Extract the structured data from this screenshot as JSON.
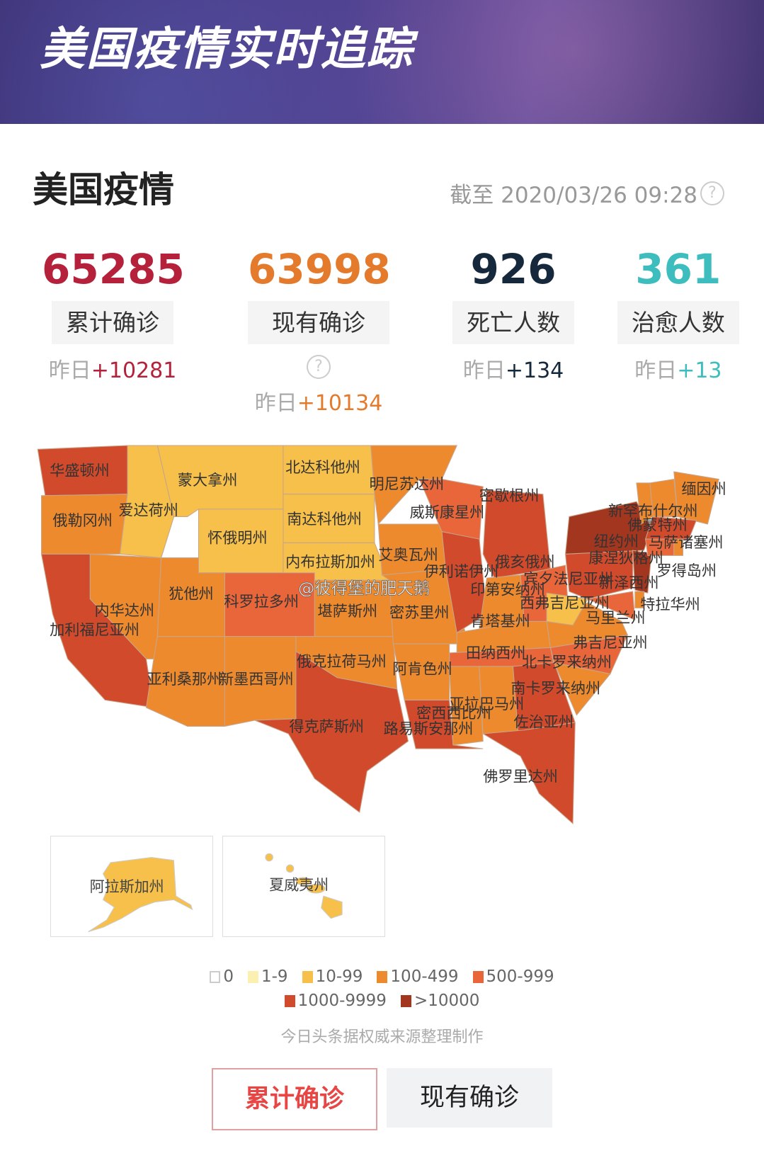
{
  "banner": {
    "title": "美国疫情实时追踪"
  },
  "header": {
    "title": "美国疫情",
    "updated": "截至 2020/03/26 09:28"
  },
  "stats": [
    {
      "value": "65285",
      "label": "累计确诊",
      "yesterday_prefix": "昨日",
      "yesterday": "+10281",
      "color": "#b5213a",
      "has_help": false
    },
    {
      "value": "63998",
      "label": "现有确诊",
      "yesterday_prefix": "昨日",
      "yesterday": "+10134",
      "color": "#e47a2c",
      "has_help": true
    },
    {
      "value": "926",
      "label": "死亡人数",
      "yesterday_prefix": "昨日",
      "yesterday": "+134",
      "color": "#16283c",
      "has_help": false
    },
    {
      "value": "361",
      "label": "治愈人数",
      "yesterday_prefix": "昨日",
      "yesterday": "+13",
      "color": "#3dbdbd",
      "has_help": false
    }
  ],
  "legend": [
    {
      "label": "0",
      "color": "#ffffff"
    },
    {
      "label": "1-9",
      "color": "#fbf0b0"
    },
    {
      "label": "10-99",
      "color": "#f6c04a"
    },
    {
      "label": "100-499",
      "color": "#ee8a2e"
    },
    {
      "label": "500-999",
      "color": "#e8663a"
    },
    {
      "label": "1000-9999",
      "color": "#d04a2b"
    },
    {
      "label": ">10000",
      "color": "#a2361f"
    }
  ],
  "states": [
    {
      "name": "华盛顿州",
      "bin": 5
    },
    {
      "name": "俄勒冈州",
      "bin": 3
    },
    {
      "name": "爱达荷州",
      "bin": 2
    },
    {
      "name": "蒙大拿州",
      "bin": 2
    },
    {
      "name": "北达科他州",
      "bin": 2
    },
    {
      "name": "南达科他州",
      "bin": 2
    },
    {
      "name": "怀俄明州",
      "bin": 2
    },
    {
      "name": "内布拉斯加州",
      "bin": 2
    },
    {
      "name": "内华达州",
      "bin": 3
    },
    {
      "name": "加利福尼亚州",
      "bin": 5
    },
    {
      "name": "犹他州",
      "bin": 3
    },
    {
      "name": "科罗拉多州",
      "bin": 4
    },
    {
      "name": "亚利桑那州",
      "bin": 3
    },
    {
      "name": "新墨西哥州",
      "bin": 3
    },
    {
      "name": "堪萨斯州",
      "bin": 3
    },
    {
      "name": "俄克拉荷马州",
      "bin": 3
    },
    {
      "name": "得克萨斯州",
      "bin": 5
    },
    {
      "name": "明尼苏达州",
      "bin": 3
    },
    {
      "name": "艾奥瓦州",
      "bin": 3
    },
    {
      "name": "密苏里州",
      "bin": 3
    },
    {
      "name": "威斯康星州",
      "bin": 4
    },
    {
      "name": "伊利诺伊州",
      "bin": 5
    },
    {
      "name": "密歇根州",
      "bin": 5
    },
    {
      "name": "印第安纳州",
      "bin": 3
    },
    {
      "name": "俄亥俄州",
      "bin": 4
    },
    {
      "name": "肯塔基州",
      "bin": 3
    },
    {
      "name": "田纳西州",
      "bin": 4
    },
    {
      "name": "阿肯色州",
      "bin": 3
    },
    {
      "name": "路易斯安那州",
      "bin": 5
    },
    {
      "name": "密西西比州",
      "bin": 3
    },
    {
      "name": "亚拉巴马州",
      "bin": 3
    },
    {
      "name": "佐治亚州",
      "bin": 5
    },
    {
      "name": "佛罗里达州",
      "bin": 5
    },
    {
      "name": "南卡罗来纳州",
      "bin": 3
    },
    {
      "name": "北卡罗来纳州",
      "bin": 4
    },
    {
      "name": "弗吉尼亚州",
      "bin": 3
    },
    {
      "name": "西弗吉尼亚州",
      "bin": 2
    },
    {
      "name": "宾夕法尼亚州",
      "bin": 5
    },
    {
      "name": "纽约州",
      "bin": 6
    },
    {
      "name": "马里兰州",
      "bin": 4
    },
    {
      "name": "新泽西州",
      "bin": 6
    },
    {
      "name": "新罕布什尔州",
      "bin": 3
    },
    {
      "name": "缅因州",
      "bin": 3
    },
    {
      "name": "马萨诸塞州",
      "bin": 5
    },
    {
      "name": "康涅狄格州",
      "bin": 4
    },
    {
      "name": "佛蒙特州",
      "bin": 3
    },
    {
      "name": "罗得岛州",
      "bin": 3
    },
    {
      "name": "特拉华州",
      "bin": 3
    }
  ],
  "insets": [
    {
      "name": "阿拉斯加州",
      "bin": 2
    },
    {
      "name": "夏威夷州",
      "bin": 2
    }
  ],
  "watermark": "@彼得堡的肥天鹅",
  "source": "今日头条据权威来源整理制作",
  "buttons": [
    {
      "label": "累计确诊",
      "active": true
    },
    {
      "label": "现有确诊",
      "active": false
    }
  ]
}
